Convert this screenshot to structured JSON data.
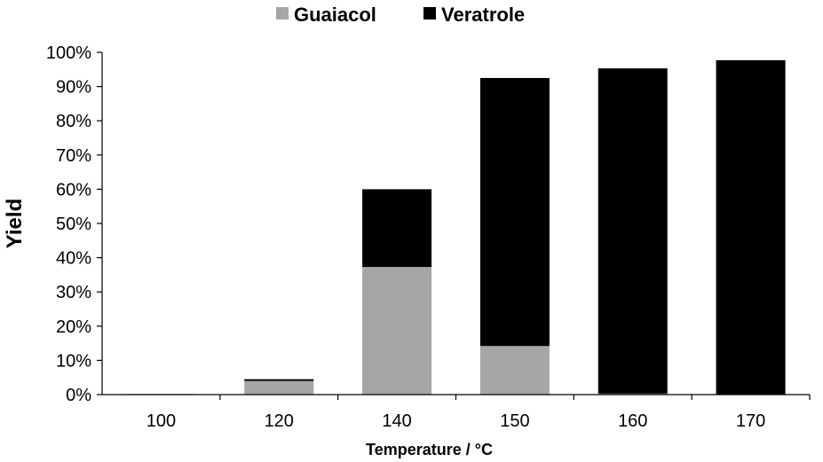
{
  "chart_data": {
    "type": "bar",
    "stacked": true,
    "categories": [
      "100",
      "120",
      "140",
      "150",
      "160",
      "170"
    ],
    "series": [
      {
        "name": "Guaiacol",
        "color": "#a6a6a6",
        "values": [
          0.2,
          4.0,
          37.3,
          14.2,
          0.3,
          0.0
        ]
      },
      {
        "name": "Veratrole",
        "color": "#000000",
        "values": [
          0.0,
          0.5,
          22.7,
          78.3,
          95.0,
          97.7
        ]
      }
    ],
    "xlabel": "Temperature / °C",
    "ylabel": "Yield",
    "ylim": [
      0,
      100
    ],
    "yticks": [
      0,
      10,
      20,
      30,
      40,
      50,
      60,
      70,
      80,
      90,
      100
    ],
    "ytick_format": "{v}%",
    "grid": false,
    "legend": "top-center"
  }
}
